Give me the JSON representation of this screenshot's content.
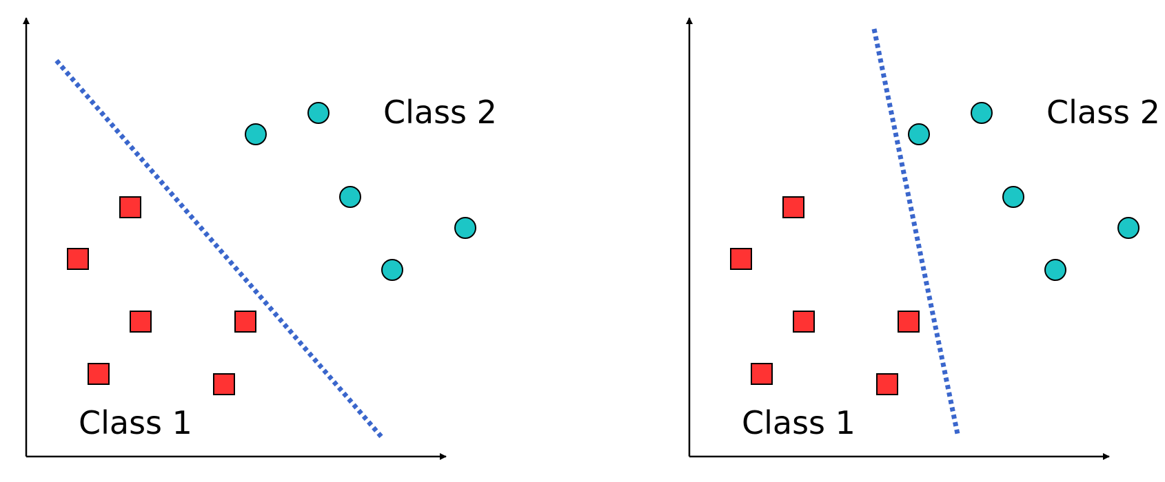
{
  "colors": {
    "axis": "#000000",
    "class1_fill": "#ff3333",
    "class2_fill": "#1cc6c6",
    "marker_stroke": "#000000",
    "boundary": "#3a66cc",
    "label": "#000000"
  },
  "icons": {
    "class1_marker": "red-square-icon",
    "class2_marker": "teal-circle-icon"
  },
  "panels": [
    {
      "labels": {
        "class1": "Class 1",
        "class2": "Class 2"
      },
      "boundary": "diagonal"
    },
    {
      "labels": {
        "class1": "Class 1",
        "class2": "Class 2"
      },
      "boundary": "near-vertical"
    }
  ]
}
